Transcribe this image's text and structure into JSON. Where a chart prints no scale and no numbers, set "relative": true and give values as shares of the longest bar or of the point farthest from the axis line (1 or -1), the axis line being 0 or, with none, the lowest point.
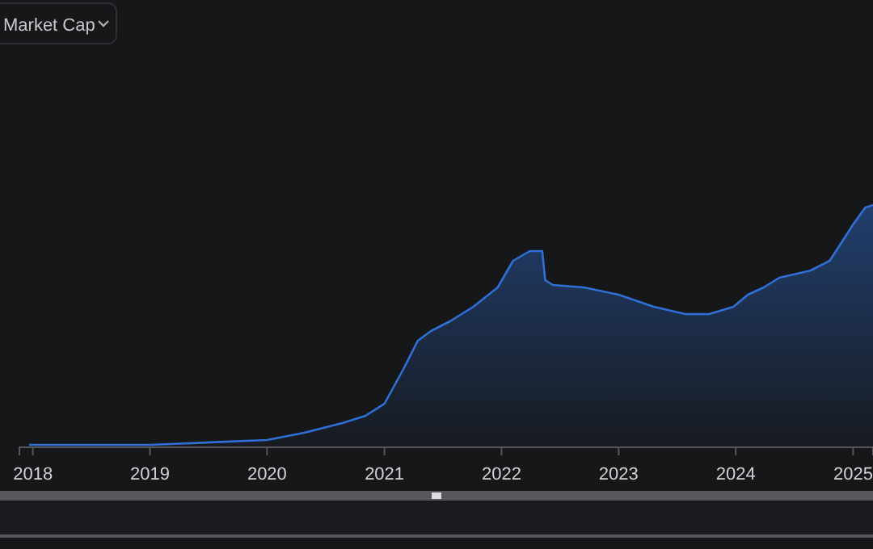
{
  "chart_data": {
    "type": "area",
    "title": "Market Cap",
    "relative": true,
    "x": [
      "2017-12-20",
      "2019-01-01",
      "2020-01-01",
      "2020-04-26",
      "2020-08-23",
      "2020-11-03",
      "2021-01-01",
      "2021-02-28",
      "2021-04-15",
      "2021-05-26",
      "2021-07-24",
      "2021-10-05",
      "2021-12-20",
      "2022-02-06",
      "2022-03-30",
      "2022-05-08",
      "2022-05-17",
      "2022-06-10",
      "2022-09-15",
      "2023-01-01",
      "2023-04-21",
      "2023-07-28",
      "2023-10-10",
      "2023-12-25",
      "2024-02-08",
      "2024-03-28",
      "2024-05-16",
      "2024-08-22",
      "2024-10-20",
      "2024-11-28",
      "2025-01-01",
      "2025-02-08",
      "2025-03-04"
    ],
    "series": [
      {
        "color": "#2f6fd6",
        "values": [
          0.01,
          0.01,
          0.03,
          0.06,
          0.1,
          0.13,
          0.18,
          0.32,
          0.44,
          0.48,
          0.52,
          0.58,
          0.66,
          0.77,
          0.81,
          0.81,
          0.69,
          0.67,
          0.66,
          0.63,
          0.58,
          0.55,
          0.55,
          0.58,
          0.63,
          0.66,
          0.7,
          0.73,
          0.77,
          0.85,
          0.92,
          0.99,
          1
        ]
      }
    ],
    "xlim": [
      "2017-11-20",
      "2025-03-04"
    ],
    "xticks": [
      "2018",
      "2019",
      "2020",
      "2021",
      "2022",
      "2023",
      "2024",
      "2025"
    ]
  }
}
